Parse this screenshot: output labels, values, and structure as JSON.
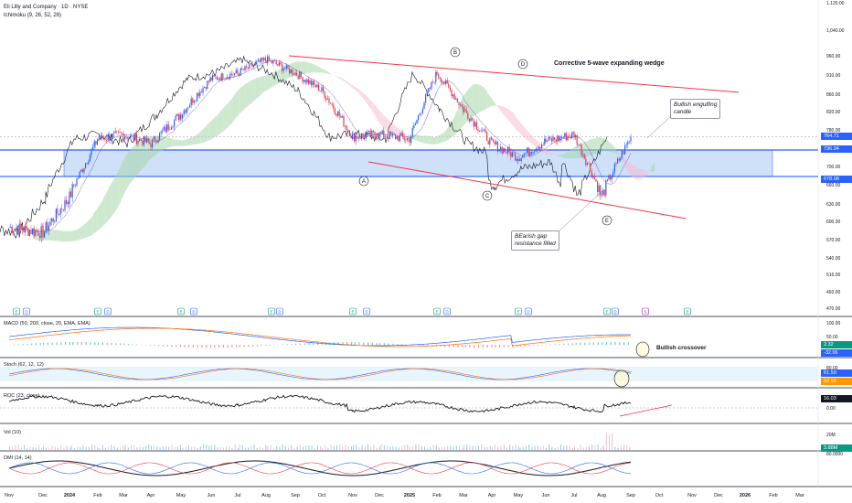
{
  "header": {
    "symbol_line": "Eli Lilly and Company · 1D · NYSE",
    "indicator_line": "Ichimoku (9, 26, 52, 26)"
  },
  "annotations": {
    "wedge_label": "Corrective 5-wave expanding wedge",
    "bullish_engulfing": [
      "Bullish engulfing",
      "candle"
    ],
    "bearish_gap": [
      "BEarish gap",
      "resistance filled"
    ],
    "bullish_crossover": "Bullish crossover",
    "wave_labels": [
      "A",
      "B",
      "C",
      "D",
      "E"
    ]
  },
  "panes": {
    "macd": "MACD (50, 200, close, 20, EMA, EMA)",
    "stoch": "Stoch (62, 12, 12)",
    "roc": "ROC (23, close)",
    "vol": "Vol (10)",
    "dmi": "DMI (14, 14)"
  },
  "price_tags": {
    "last": "764.71",
    "upper_level": "736.04",
    "lower_level": "678.08",
    "macd_1": "2.32",
    "macd_2": "-32.06",
    "stoch_1": "61.50",
    "stoch_2": "52.55",
    "roc": "16.03",
    "vol": "3.88M"
  },
  "colors": {
    "support_zone": "#bbd3f7",
    "level_line": "#2962ff",
    "wedge_line": "#f23645",
    "candle_up": "#2962ff",
    "candle_down": "#f23645",
    "cloud_green": "#a5d6a7",
    "cloud_red": "#f8bbd0"
  },
  "chart_data": {
    "type": "candlestick",
    "title": "Eli Lilly and Company · 1D · NYSE",
    "x_ticks": [
      "Nov",
      "Dec",
      "2024",
      "Feb",
      "Mar",
      "Apr",
      "May",
      "Jun",
      "Jul",
      "Aug",
      "Sep",
      "Oct",
      "Nov",
      "Dec",
      "2025",
      "Feb",
      "Mar",
      "Apr",
      "May",
      "Jun",
      "Jul",
      "Aug",
      "Sep",
      "Oct",
      "Nov",
      "Dec",
      "2026",
      "Feb",
      "Mar"
    ],
    "y_ticks": [
      1120,
      1040,
      960,
      910,
      860,
      820,
      780,
      740,
      700,
      660,
      630,
      600,
      570,
      540,
      516,
      492,
      470
    ],
    "price_series_monthly": [
      {
        "x": "Nov",
        "close": 590
      },
      {
        "x": "Dec",
        "close": 582
      },
      {
        "x": "2024",
        "close": 640
      },
      {
        "x": "Feb",
        "close": 760
      },
      {
        "x": "Mar",
        "close": 770
      },
      {
        "x": "Apr",
        "close": 750
      },
      {
        "x": "May",
        "close": 815
      },
      {
        "x": "Jun",
        "close": 900
      },
      {
        "x": "Jul",
        "close": 915
      },
      {
        "x": "Aug",
        "close": 950
      },
      {
        "x": "Sep",
        "close": 915
      },
      {
        "x": "Oct",
        "close": 870
      },
      {
        "x": "Nov",
        "close": 765
      },
      {
        "x": "Dec",
        "close": 770
      },
      {
        "x": "2025",
        "close": 760
      },
      {
        "x": "Feb",
        "close": 915
      },
      {
        "x": "Mar",
        "close": 825
      },
      {
        "x": "Apr",
        "close": 750
      },
      {
        "x": "May",
        "close": 720
      },
      {
        "x": "Jun",
        "close": 755
      },
      {
        "x": "Jul",
        "close": 770
      },
      {
        "x": "Aug",
        "close": 640
      },
      {
        "x": "Sep",
        "close": 765
      }
    ],
    "levels": {
      "upper": 736.04,
      "lower": 678.08
    },
    "wedge": {
      "upper": [
        {
          "x": "Sep 2024",
          "y": 960
        },
        {
          "x": "Oct 2025",
          "y": 865
        }
      ],
      "lower": [
        {
          "x": "Nov 2024",
          "y": 710
        },
        {
          "x": "Oct 2025",
          "y": 605
        }
      ]
    }
  }
}
